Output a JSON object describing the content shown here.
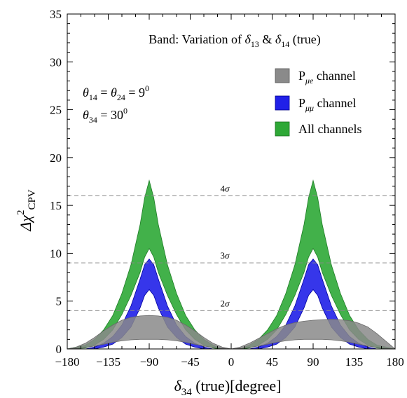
{
  "chart_data": {
    "type": "area",
    "title": "Band: Variation of δ13 & δ14 (true)",
    "title_parts": {
      "prefix": "Band: Variation of ",
      "sym1": "δ",
      "sub1": "13",
      "mid": " & ",
      "sym2": "δ",
      "sub2": "14",
      "suffix": " (true)"
    },
    "xlabel": "δ34 (true)[degree]",
    "xlabel_parts": {
      "sym": "δ",
      "sub": "34",
      "rest": " (true)[degree]"
    },
    "ylabel": "Δχ2 CPV",
    "ylabel_parts": {
      "main": "Δχ",
      "sup": "2",
      "sub": "CPV"
    },
    "xlim": [
      -180,
      180
    ],
    "ylim": [
      0,
      35
    ],
    "x_ticks": [
      -180,
      -135,
      -90,
      -45,
      0,
      45,
      90,
      135,
      180
    ],
    "x_tick_labels": [
      "−180",
      "−135",
      "−90",
      "−45",
      "0",
      "45",
      "90",
      "135",
      "180"
    ],
    "y_ticks": [
      0,
      5,
      10,
      15,
      20,
      25,
      30,
      35
    ],
    "y_tick_labels": [
      "0",
      "5",
      "10",
      "15",
      "20",
      "25",
      "30",
      "35"
    ],
    "grid": false,
    "legend_position": "top-right",
    "annotations": {
      "params_line1": {
        "a": "θ",
        "as": "14",
        "eq": " = ",
        "b": "θ",
        "bs": "24",
        "val": " = 9",
        "sup": "0"
      },
      "params_line2": {
        "a": "θ",
        "as": "34",
        "val": " = 30",
        "sup": "0"
      }
    },
    "reference_lines": [
      {
        "value": 16,
        "label": "4σ",
        "num": "4",
        "sym": "σ"
      },
      {
        "value": 9,
        "label": "3σ",
        "num": "3",
        "sym": "σ"
      },
      {
        "value": 4,
        "label": "2σ",
        "num": "2",
        "sym": "σ"
      }
    ],
    "series": [
      {
        "name": "All channels",
        "legend_parts": {
          "text": "All channels"
        },
        "color": "#2ea836",
        "x": [
          -180,
          -160,
          -150,
          -140,
          -130,
          -120,
          -110,
          -100,
          -95,
          -90,
          -85,
          -80,
          -70,
          -60,
          -50,
          -40,
          -30,
          -20,
          -15,
          -10,
          0,
          10,
          15,
          20,
          30,
          40,
          50,
          60,
          70,
          80,
          85,
          90,
          95,
          100,
          110,
          120,
          130,
          140,
          150,
          160,
          180
        ],
        "upper": [
          0,
          0.4,
          1.0,
          2.0,
          3.5,
          5.8,
          8.8,
          13.0,
          15.8,
          17.6,
          15.8,
          13.0,
          8.8,
          5.8,
          3.5,
          2.0,
          1.0,
          0.4,
          0.2,
          0,
          0,
          0,
          0.2,
          0.4,
          1.0,
          2.0,
          3.5,
          5.8,
          8.8,
          13.0,
          15.8,
          17.6,
          15.8,
          13.0,
          8.8,
          5.8,
          3.5,
          2.0,
          1.0,
          0.4,
          0
        ],
        "lower": [
          0,
          0.1,
          0.4,
          1.0,
          2.0,
          3.6,
          5.6,
          8.0,
          9.6,
          10.5,
          9.6,
          8.0,
          5.6,
          3.6,
          2.0,
          1.0,
          0.4,
          0.1,
          0.05,
          0,
          0,
          0,
          0.05,
          0.1,
          0.4,
          1.0,
          2.0,
          3.6,
          5.6,
          8.0,
          9.6,
          10.5,
          9.6,
          8.0,
          5.6,
          3.6,
          2.0,
          1.0,
          0.4,
          0.1,
          0
        ]
      },
      {
        "name": "Pμμ channel",
        "legend_parts": {
          "main": "P",
          "sub": "μμ",
          "rest": "  channel"
        },
        "color": "#2020e8",
        "x": [
          -180,
          -160,
          -150,
          -140,
          -130,
          -120,
          -110,
          -100,
          -95,
          -90,
          -85,
          -80,
          -70,
          -60,
          -50,
          -40,
          -30,
          -20,
          -15,
          -10,
          0,
          10,
          15,
          20,
          30,
          40,
          50,
          60,
          70,
          80,
          85,
          90,
          95,
          100,
          110,
          120,
          130,
          140,
          150,
          160,
          180
        ],
        "upper": [
          0,
          0,
          0.2,
          0.6,
          1.3,
          2.5,
          4.5,
          7.3,
          8.8,
          9.4,
          8.8,
          7.3,
          4.5,
          2.5,
          1.3,
          0.6,
          0.2,
          0,
          0,
          0,
          0,
          0,
          0,
          0,
          0.2,
          0.6,
          1.3,
          2.5,
          4.5,
          7.3,
          8.8,
          9.4,
          8.8,
          7.3,
          4.5,
          2.5,
          1.3,
          0.6,
          0.2,
          0,
          0
        ],
        "lower": [
          0,
          0,
          0,
          0.2,
          0.5,
          1.2,
          2.3,
          4.3,
          5.6,
          6.2,
          5.6,
          4.3,
          2.3,
          1.2,
          0.5,
          0.2,
          0,
          0,
          0,
          0,
          0,
          0,
          0,
          0,
          0,
          0.2,
          0.5,
          1.2,
          2.3,
          4.3,
          5.6,
          6.2,
          5.6,
          4.3,
          2.3,
          1.2,
          0.5,
          0.2,
          0,
          0,
          0
        ]
      },
      {
        "name": "Pμe channel",
        "legend_parts": {
          "main": "P",
          "sub": "μe",
          "rest": "  channel"
        },
        "color": "#8a8a8a",
        "x": [
          -180,
          -170,
          -160,
          -150,
          -140,
          -130,
          -120,
          -110,
          -100,
          -90,
          -80,
          -70,
          -60,
          -50,
          -40,
          -30,
          -20,
          -10,
          0,
          10,
          20,
          30,
          40,
          50,
          60,
          70,
          80,
          90,
          100,
          110,
          120,
          130,
          140,
          150,
          160,
          170,
          180
        ],
        "upper": [
          0,
          0.2,
          0.6,
          1.2,
          1.9,
          2.5,
          3.0,
          3.3,
          3.45,
          3.5,
          3.45,
          3.3,
          3.0,
          2.5,
          1.9,
          1.2,
          0.6,
          0.2,
          0,
          0.2,
          0.6,
          1.1,
          1.6,
          2.1,
          2.5,
          2.75,
          2.9,
          3.0,
          3.05,
          3.1,
          3.05,
          2.95,
          2.7,
          2.3,
          1.6,
          0.8,
          0
        ],
        "lower": [
          0,
          0.05,
          0.15,
          0.3,
          0.5,
          0.7,
          0.85,
          0.95,
          1.0,
          1.0,
          1.0,
          0.95,
          0.85,
          0.7,
          0.5,
          0.3,
          0.15,
          0.05,
          0,
          0.05,
          0.15,
          0.3,
          0.5,
          0.7,
          0.85,
          0.95,
          1.0,
          1.0,
          1.0,
          0.95,
          0.85,
          0.7,
          0.5,
          0.3,
          0.15,
          0.05,
          0
        ]
      }
    ],
    "legend_order": [
      2,
      1,
      0
    ]
  }
}
